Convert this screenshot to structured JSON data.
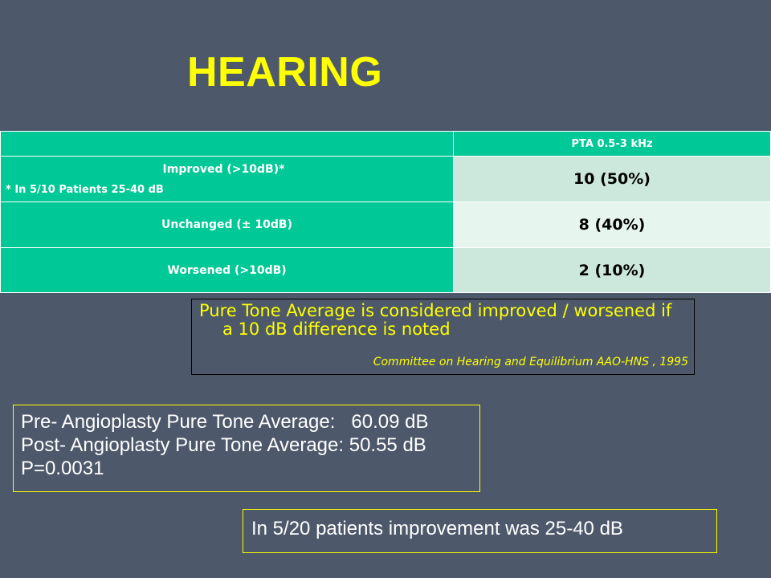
{
  "slide": {
    "title": "HEARING"
  },
  "table": {
    "header": {
      "label": "",
      "value": "PTA 0.5-3 kHz"
    },
    "rows": [
      {
        "label": "Improved  (>10dB)*",
        "note": "* In 5/10 Patients 25-40 dB",
        "value": "10 (50%)"
      },
      {
        "label": "Unchanged (± 10dB)",
        "value": "8 (40%)"
      },
      {
        "label": "Worsened (>10dB)",
        "value": "2 (10%)"
      }
    ]
  },
  "definition_note": {
    "line1": "Pure Tone Average  is considered improved / worsened if",
    "line2": "a 10 dB difference is noted",
    "citation": "Committee on Hearing and Equilibrium AAO-HNS , 1995"
  },
  "pta_summary": {
    "pre": "Pre- Angioplasty Pure Tone Average:   60.09 dB",
    "post": "Post- Angioplasty Pure Tone Average: 50.55 dB",
    "p_value": "P=0.0031"
  },
  "improvement_note": "In 5/20 patients improvement was 25-40 dB",
  "colors": {
    "background": "#4d596b",
    "title": "#ffff00",
    "table_label_bg": "#00c896",
    "table_value_bg_dark": "#cce8dc",
    "table_value_bg_light": "#e7f5ef",
    "box_border": "#ffff00"
  }
}
